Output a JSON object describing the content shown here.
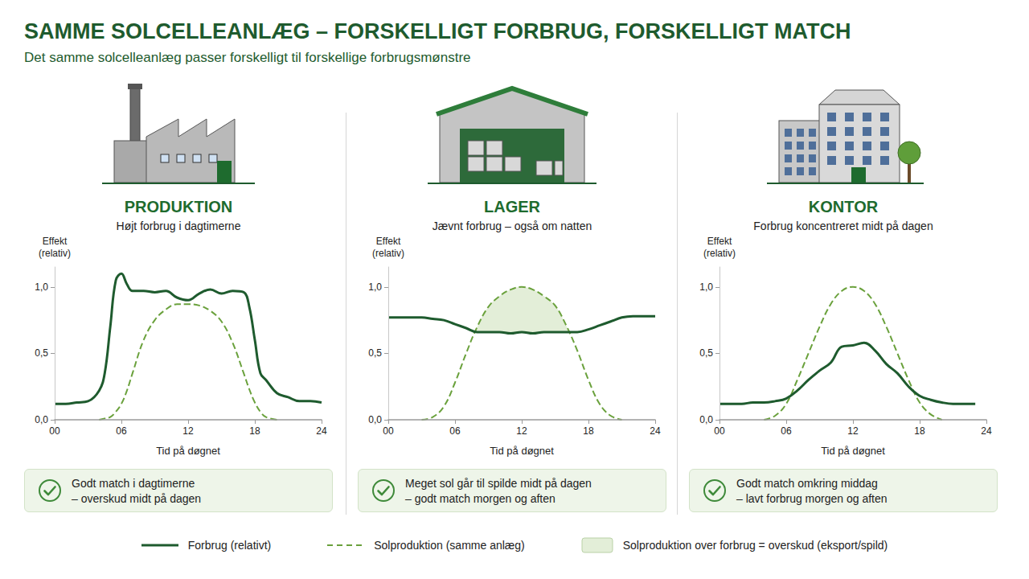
{
  "title": "SAMME SOLCELLEANLÆG – FORSKELLIGT FORBRUG, FORSKELLIGT MATCH",
  "subtitle": "Det samme solcelleanlæg passer forskelligt til forskellige forbrugsmønstre",
  "chart_data": [
    {
      "type": "line",
      "title": "PRODUKTION",
      "subtitle": "Højt forbrug i dagtimerne",
      "y_label": "Effekt\n(relativ)",
      "x_label": "Tid på døgnet",
      "x": [
        0,
        1,
        2,
        3,
        4,
        4.5,
        5,
        5.5,
        6,
        6.5,
        7,
        8,
        9,
        10,
        11,
        12,
        13,
        14,
        15,
        16,
        17,
        17.5,
        18,
        18.5,
        19,
        20,
        21,
        22,
        23,
        24
      ],
      "series": [
        {
          "name": "Forbrug (relativt)",
          "color": "#1e5b2e",
          "line_style": "solid",
          "values": [
            0.12,
            0.12,
            0.13,
            0.14,
            0.22,
            0.35,
            0.7,
            1.05,
            1.1,
            1.02,
            0.97,
            0.97,
            0.96,
            0.97,
            0.92,
            0.9,
            0.95,
            0.98,
            0.95,
            0.97,
            0.96,
            0.85,
            0.6,
            0.35,
            0.3,
            0.2,
            0.17,
            0.14,
            0.14,
            0.13
          ]
        },
        {
          "name": "Solproduktion (samme anlæg)",
          "color": "#6aa13c",
          "line_style": "dashed",
          "values": [
            null,
            null,
            null,
            null,
            0,
            0.01,
            0.02,
            0.06,
            0.12,
            0.22,
            0.35,
            0.6,
            0.75,
            0.83,
            0.87,
            0.87,
            0.86,
            0.82,
            0.74,
            0.58,
            0.35,
            0.23,
            0.13,
            0.06,
            0.02,
            0,
            null,
            null,
            null,
            null
          ]
        }
      ],
      "xlim": [
        0,
        24
      ],
      "xticks": [
        {
          "value": 0,
          "label": "00"
        },
        {
          "value": 6,
          "label": "06"
        },
        12,
        18,
        24
      ],
      "ylim": [
        0,
        1.15
      ],
      "yticks": [
        {
          "value": 0,
          "label": "0,0"
        },
        {
          "value": 0.5,
          "label": "0,5"
        },
        {
          "value": 1,
          "label": "1,0"
        }
      ],
      "grid": false,
      "legend": "bottom",
      "note": [
        "Godt match i dagtimerne",
        "– overskud midt på dagen"
      ]
    },
    {
      "type": "line",
      "title": "LAGER",
      "subtitle": "Jævnt forbrug – også om natten",
      "y_label": "Effekt\n(relativ)",
      "x_label": "Tid på døgnet",
      "x": [
        0,
        1,
        2,
        3,
        4,
        5,
        6,
        7,
        8,
        9,
        10,
        11,
        12,
        13,
        14,
        15,
        16,
        17,
        18,
        19,
        20,
        21,
        22,
        23,
        24
      ],
      "series": [
        {
          "name": "Forbrug (relativt)",
          "color": "#1e5b2e",
          "line_style": "solid",
          "values": [
            0.77,
            0.77,
            0.77,
            0.77,
            0.76,
            0.75,
            0.72,
            0.69,
            0.66,
            0.66,
            0.66,
            0.65,
            0.66,
            0.65,
            0.66,
            0.66,
            0.66,
            0.66,
            0.68,
            0.71,
            0.74,
            0.77,
            0.78,
            0.78,
            0.78
          ]
        },
        {
          "name": "Solproduktion (samme anlæg)",
          "color": "#6aa13c",
          "line_style": "dashed",
          "values": [
            null,
            null,
            null,
            0,
            0.02,
            0.1,
            0.28,
            0.5,
            0.7,
            0.85,
            0.93,
            0.98,
            1.0,
            0.98,
            0.93,
            0.86,
            0.71,
            0.52,
            0.3,
            0.12,
            0.03,
            0,
            null,
            null,
            null
          ]
        }
      ],
      "shaded": {
        "name": "Solproduktion over forbrug = overskud (eksport/spild)",
        "color": "#e3eed8"
      },
      "xlim": [
        0,
        24
      ],
      "xticks": [
        {
          "value": 0,
          "label": "00"
        },
        {
          "value": 6,
          "label": "06"
        },
        12,
        18,
        24
      ],
      "ylim": [
        0,
        1.15
      ],
      "yticks": [
        {
          "value": 0,
          "label": "0,0"
        },
        {
          "value": 0.5,
          "label": "0,5"
        },
        {
          "value": 1,
          "label": "1,0"
        }
      ],
      "grid": false,
      "legend": "bottom",
      "note": [
        "Meget sol går til spilde midt på dagen",
        "– godt match morgen og aften"
      ]
    },
    {
      "type": "line",
      "title": "KONTOR",
      "subtitle": "Forbrug koncentreret midt på dagen",
      "y_label": "Effekt\n(relativ)",
      "x_label": "Tid på døgnet",
      "x": [
        0,
        1,
        2,
        3,
        4,
        5,
        6,
        7,
        8,
        9,
        10,
        11,
        12,
        13,
        14,
        15,
        16,
        17,
        18,
        19,
        20,
        21,
        22,
        23
      ],
      "series": [
        {
          "name": "Forbrug (relativt)",
          "color": "#1e5b2e",
          "line_style": "solid",
          "values": [
            0.12,
            0.12,
            0.12,
            0.13,
            0.13,
            0.14,
            0.16,
            0.22,
            0.3,
            0.37,
            0.43,
            0.55,
            0.56,
            0.58,
            0.52,
            0.42,
            0.35,
            0.25,
            0.18,
            0.15,
            0.13,
            0.12,
            0.12,
            0.12
          ]
        },
        {
          "name": "Solproduktion (samme anlæg)",
          "color": "#6aa13c",
          "line_style": "dashed",
          "values": [
            null,
            null,
            null,
            null,
            0,
            0.03,
            0.12,
            0.3,
            0.5,
            0.7,
            0.87,
            0.97,
            1.0,
            0.97,
            0.87,
            0.7,
            0.5,
            0.3,
            0.13,
            0.04,
            0,
            null,
            null,
            null
          ]
        }
      ],
      "xlim": [
        0,
        24
      ],
      "xticks": [
        {
          "value": 0,
          "label": "00"
        },
        {
          "value": 6,
          "label": "06"
        },
        12,
        18,
        24
      ],
      "ylim": [
        0,
        1.15
      ],
      "yticks": [
        {
          "value": 0,
          "label": "0,0"
        },
        {
          "value": 0.5,
          "label": "0,5"
        },
        {
          "value": 1,
          "label": "1,0"
        }
      ],
      "grid": false,
      "legend": "bottom",
      "note": [
        "Godt match omkring middag",
        "– lavt forbrug morgen og aften"
      ]
    }
  ]
}
